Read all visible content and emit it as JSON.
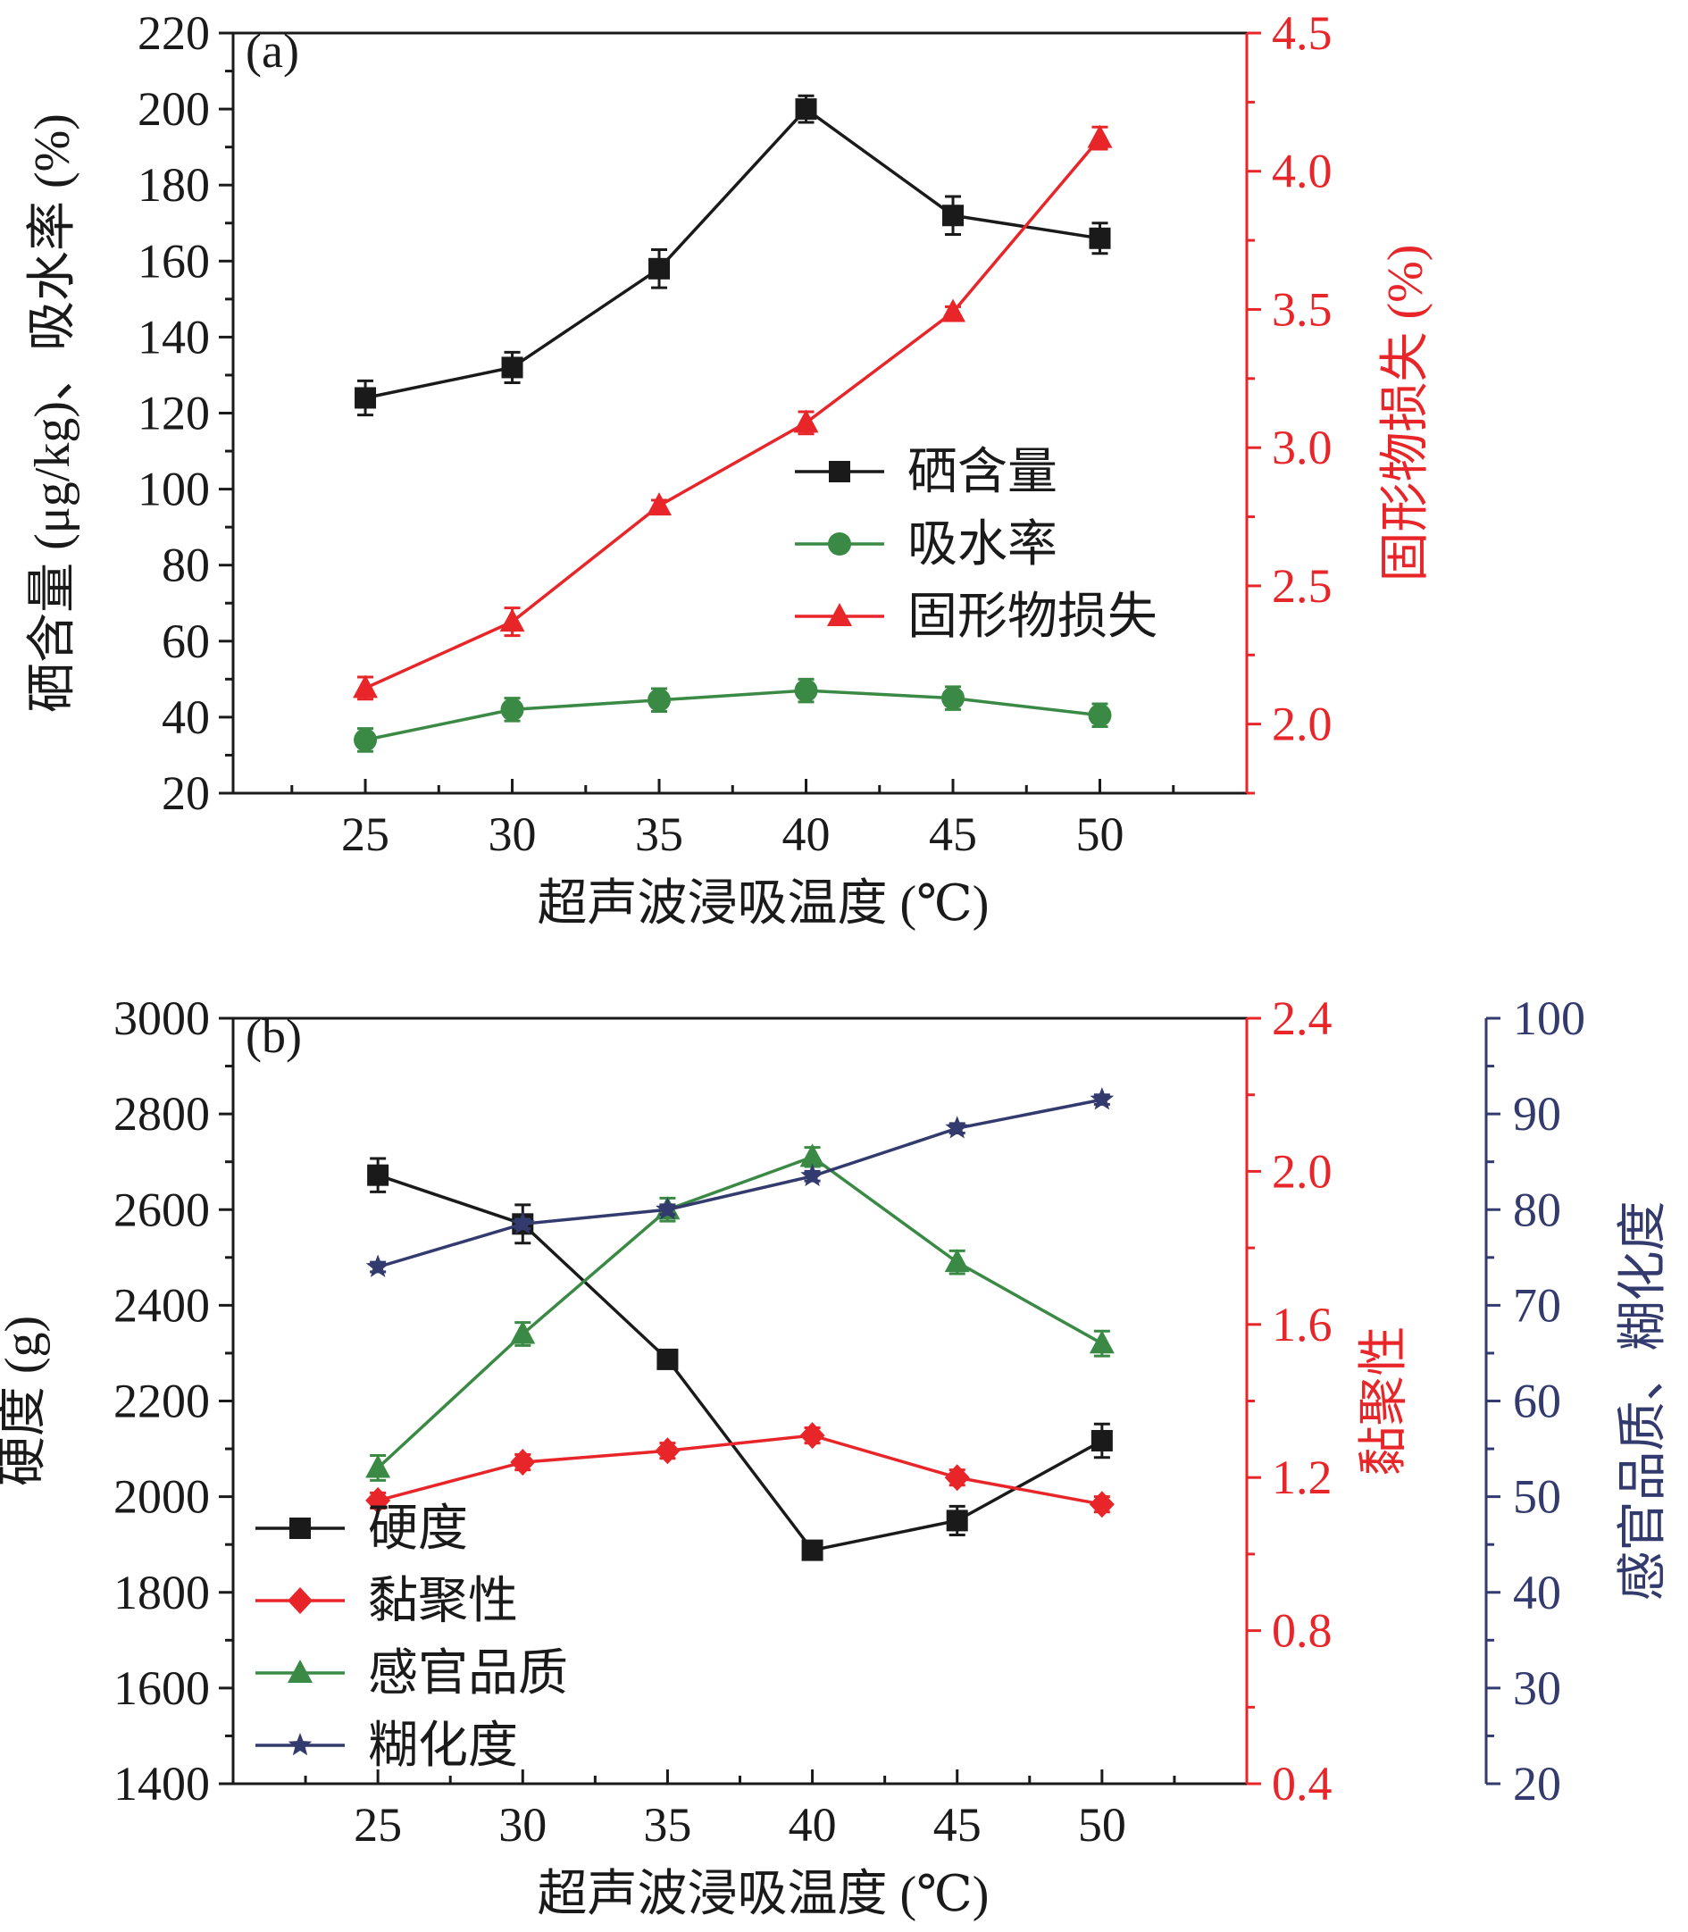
{
  "colors": {
    "black": "#1a1a1a",
    "red": "#e8262a",
    "green": "#3a8a45",
    "navy": "#333a6e"
  },
  "chart_data": [
    {
      "type": "line",
      "panel_label": "(a)",
      "x": [
        25,
        30,
        35,
        40,
        45,
        50
      ],
      "xlim": [
        20.5,
        55
      ],
      "xticks": [
        25,
        30,
        35,
        40,
        45,
        50
      ],
      "xlabel": "超声波浸吸温度 (℃)",
      "y_left": {
        "label": "硒含量 (μg/kg)、吸水率 (%)",
        "lim": [
          20,
          220
        ],
        "ticks": [
          20,
          40,
          60,
          80,
          100,
          120,
          140,
          160,
          180,
          200,
          220
        ]
      },
      "y_right": {
        "label": "固形物损失 (%)",
        "lim": [
          1.75,
          4.5
        ],
        "ticks": [
          2.0,
          2.5,
          3.0,
          3.5,
          4.0,
          4.5
        ],
        "tick_labels": [
          "2.0",
          "2.5",
          "3.0",
          "3.5",
          "4.0",
          "4.5"
        ]
      },
      "series": [
        {
          "name": "硒含量",
          "axis": "left",
          "color": "black",
          "marker": "square",
          "values": [
            124,
            132,
            158,
            200,
            172,
            166
          ],
          "errors": [
            4.5,
            4,
            5,
            3.5,
            5,
            4
          ]
        },
        {
          "name": "吸水率",
          "axis": "left",
          "color": "green",
          "marker": "circle",
          "values": [
            34,
            42,
            44.5,
            47,
            45,
            40.5
          ],
          "errors": [
            3,
            3,
            3,
            3,
            3,
            3
          ]
        },
        {
          "name": "固形物损失",
          "axis": "right",
          "color": "red",
          "marker": "triangle",
          "values": [
            2.13,
            2.37,
            2.79,
            3.09,
            3.49,
            4.12
          ],
          "errors": [
            0.04,
            0.05,
            0.02,
            0.04,
            0.02,
            0.04
          ]
        }
      ],
      "legend": "center-right"
    },
    {
      "type": "line",
      "panel_label": "(b)",
      "x": [
        25,
        30,
        35,
        40,
        45,
        50
      ],
      "xlim": [
        20,
        55
      ],
      "xticks": [
        25,
        30,
        35,
        40,
        45,
        50
      ],
      "xlabel": "超声波浸吸温度 (℃)",
      "y_left": {
        "label": "硬度 (g)",
        "lim": [
          1400,
          3000
        ],
        "ticks": [
          1400,
          1600,
          1800,
          2000,
          2200,
          2400,
          2600,
          2800,
          3000
        ]
      },
      "y_right": {
        "label": "黏聚性",
        "lim": [
          0.4,
          2.4
        ],
        "ticks": [
          0.4,
          0.8,
          1.2,
          1.6,
          2.0,
          2.4
        ],
        "tick_labels": [
          "0.4",
          "0.8",
          "1.2",
          "1.6",
          "2.0",
          "2.4"
        ]
      },
      "y_right2": {
        "label": "感官品质、糊化度",
        "lim": [
          20,
          100
        ],
        "ticks": [
          20,
          30,
          40,
          50,
          60,
          70,
          80,
          90,
          100
        ]
      },
      "series": [
        {
          "name": "硬度",
          "axis": "left",
          "color": "black",
          "marker": "square",
          "values": [
            2672,
            2570,
            2287,
            1888,
            1950,
            2117
          ],
          "errors": [
            35,
            40,
            15,
            10,
            30,
            35
          ]
        },
        {
          "name": "黏聚性",
          "axis": "right",
          "color": "red",
          "marker": "diamond",
          "values": [
            1.14,
            1.24,
            1.27,
            1.31,
            1.2,
            1.13
          ],
          "errors": [
            0.02,
            0.02,
            0.02,
            0.02,
            0.02,
            0.02
          ]
        },
        {
          "name": "感官品质",
          "axis": "right2",
          "color": "green",
          "marker": "triangle",
          "values": [
            53,
            67,
            80,
            85.5,
            74.5,
            66
          ],
          "errors": [
            1.3,
            1.2,
            1.2,
            1,
            1.2,
            1.3
          ]
        },
        {
          "name": "糊化度",
          "axis": "right2",
          "color": "navy",
          "marker": "star",
          "values": [
            74,
            78.5,
            80,
            83.5,
            88.5,
            91.5
          ],
          "errors": [
            0.5,
            0.5,
            0.5,
            0.5,
            0.5,
            0.5
          ]
        }
      ],
      "legend": "bottom-left"
    }
  ]
}
